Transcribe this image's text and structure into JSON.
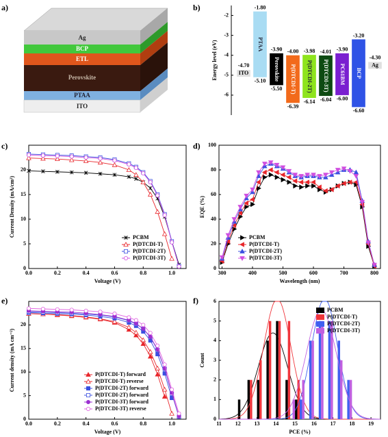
{
  "device": {
    "label": "a)",
    "layers": [
      "Ag",
      "BCP",
      "ETL",
      "Perovskite",
      "PTAA",
      "ITO"
    ]
  },
  "chart_data": [
    {
      "type": "energy",
      "label": "b)",
      "y_label": "Energy level (eV)",
      "ylim": [
        -7,
        -1.5
      ],
      "yticks": [
        -2,
        -3,
        -4,
        -5,
        -6
      ],
      "levels": [
        {
          "name": "ITO",
          "value": -4.7,
          "label": "-4.70"
        },
        {
          "name": "Ag",
          "value": -4.3,
          "label": "-4.30"
        }
      ],
      "bars": [
        {
          "name": "PTAA",
          "color": "#a9dcf3",
          "values": [
            -1.8,
            -5.1
          ],
          "value_labels": [
            "-1.80",
            "-5.10"
          ]
        },
        {
          "name": "Perovskite",
          "color": "#000000",
          "values": [
            -3.9,
            -5.5
          ],
          "value_labels": [
            "-3.90",
            "-5.50"
          ]
        },
        {
          "name": "P(DTCDI-T)",
          "color": "#f26a1b",
          "values": [
            -4.0,
            -6.39
          ],
          "value_labels": [
            "-4.00",
            "-6.39"
          ]
        },
        {
          "name": "P(DTCDI-2T)",
          "color": "#8ee41d",
          "values": [
            -3.98,
            -6.14
          ],
          "value_labels": [
            "-3.98",
            "-6.14"
          ]
        },
        {
          "name": "P(DTCDI-3T)",
          "color": "#0d4a12",
          "values": [
            -4.01,
            -6.04
          ],
          "value_labels": [
            "-4.01",
            "-6.04"
          ]
        },
        {
          "name": "PC61BM",
          "color": "#7a1fd0",
          "values": [
            -3.9,
            -6.0
          ],
          "value_labels": [
            "-3.90",
            "-6.00"
          ]
        },
        {
          "name": "BCP",
          "color": "#2f53e6",
          "values": [
            -3.2,
            -6.6
          ],
          "value_labels": [
            "-3.20",
            "-6.60"
          ]
        }
      ]
    },
    {
      "type": "line",
      "label": "c)",
      "x_label": "Voltage (V)",
      "y_label": "Current Density (mA/cm²)",
      "legend": "lower right",
      "xlim": [
        0,
        1.1
      ],
      "xticks": [
        {
          "value": 0,
          "label": "0.0"
        },
        0.2,
        0.4,
        0.6,
        0.8,
        {
          "value": 1,
          "label": "1.0"
        }
      ],
      "ylim": [
        0,
        25
      ],
      "yticks": [
        0,
        5,
        10,
        15,
        20
      ],
      "x": [
        0,
        0.1,
        0.2,
        0.3,
        0.4,
        0.5,
        0.6,
        0.7,
        0.75,
        0.8,
        0.85,
        0.9,
        0.95,
        1.0,
        1.05,
        1.08
      ],
      "series": [
        {
          "name": "PCBM",
          "color": "#000000",
          "marker": "x",
          "values": [
            19.8,
            19.7,
            19.6,
            19.5,
            19.4,
            19.2,
            19.0,
            18.6,
            18.2,
            17.5,
            16.3,
            14.2,
            10.5,
            5.5,
            0.8,
            null
          ]
        },
        {
          "name": "P(DTCDI-T)",
          "color": "#e8262b",
          "marker": "triangle-up-open",
          "values": [
            22.4,
            22.3,
            22.2,
            22.0,
            21.8,
            21.5,
            21.0,
            20.0,
            19.0,
            17.5,
            15.0,
            11.5,
            7.0,
            2.0,
            null,
            null
          ]
        },
        {
          "name": "P(DTCDI-2T)",
          "color": "#3a4fe0",
          "marker": "square-open",
          "values": [
            23.2,
            23.1,
            23.0,
            22.9,
            22.7,
            22.5,
            22.1,
            21.3,
            20.6,
            19.5,
            17.7,
            15.0,
            11.0,
            5.5,
            0.5,
            null
          ]
        },
        {
          "name": "P(DTCDI-3T)",
          "color": "#d04fe0",
          "marker": "circle-open",
          "values": [
            23.0,
            22.9,
            22.8,
            22.7,
            22.5,
            22.3,
            21.9,
            21.1,
            20.4,
            19.3,
            17.5,
            14.8,
            10.8,
            5.3,
            0.4,
            null
          ]
        }
      ]
    },
    {
      "type": "line",
      "label": "d)",
      "x_label": "Wavelength (nm)",
      "y_label": "EQE (%)",
      "legend": "lower left",
      "xlim": [
        290,
        820
      ],
      "xticks": [
        300,
        400,
        500,
        600,
        700,
        800
      ],
      "ylim": [
        0,
        100
      ],
      "yticks": [
        0,
        20,
        40,
        60,
        80,
        100
      ],
      "x": [
        300,
        320,
        340,
        360,
        380,
        400,
        420,
        440,
        460,
        480,
        500,
        520,
        540,
        560,
        580,
        600,
        620,
        640,
        660,
        680,
        700,
        720,
        740,
        760,
        780,
        800
      ],
      "series": [
        {
          "name": "PCBM",
          "color": "#000000",
          "marker": "triangle-right",
          "values": [
            5,
            20,
            32,
            42,
            50,
            52,
            65,
            74,
            76,
            74,
            72,
            70,
            67,
            66,
            67,
            67,
            64,
            62,
            64,
            67,
            69,
            70,
            68,
            50,
            18,
            2
          ]
        },
        {
          "name": "P(DTCDI-T)",
          "color": "#e8262b",
          "marker": "triangle-left",
          "values": [
            6,
            22,
            35,
            45,
            53,
            56,
            70,
            78,
            80,
            78,
            76,
            74,
            71,
            70,
            70,
            70,
            66,
            63,
            64,
            67,
            69,
            70,
            70,
            52,
            20,
            2
          ]
        },
        {
          "name": "P(DTCDI-2T)",
          "color": "#3a4fe0",
          "marker": "triangle-up",
          "values": [
            8,
            25,
            38,
            48,
            57,
            62,
            75,
            83,
            85,
            83,
            81,
            78,
            75,
            74,
            75,
            75,
            74,
            74,
            76,
            78,
            80,
            80,
            78,
            55,
            22,
            3
          ]
        },
        {
          "name": "P(DTCDI-3T)",
          "color": "#d04fe0",
          "marker": "triangle-down",
          "values": [
            9,
            27,
            40,
            50,
            59,
            64,
            78,
            85,
            86,
            84,
            82,
            79,
            76,
            75,
            76,
            76,
            75,
            76,
            78,
            80,
            81,
            79,
            75,
            54,
            21,
            3
          ]
        }
      ]
    },
    {
      "type": "line",
      "label": "e)",
      "x_label": "Voltage (V)",
      "y_label": "Current density (mA cm⁻²)",
      "legend": "lower center",
      "xlim": [
        0,
        1.1
      ],
      "xticks": [
        {
          "value": 0,
          "label": "0.0"
        },
        0.2,
        0.4,
        0.6,
        0.8,
        {
          "value": 1,
          "label": "1.0"
        }
      ],
      "ylim": [
        0,
        25
      ],
      "yticks": [
        0,
        5,
        10,
        15,
        20
      ],
      "x": [
        0,
        0.1,
        0.2,
        0.3,
        0.4,
        0.5,
        0.6,
        0.7,
        0.75,
        0.8,
        0.85,
        0.9,
        0.95,
        1.0,
        1.05,
        1.08
      ],
      "series": [
        {
          "name": "P(DTCDI-T) forward",
          "color": "#e8262b",
          "marker": "triangle-up",
          "values": [
            22.4,
            22.3,
            22.1,
            21.9,
            21.6,
            21.2,
            20.5,
            19.0,
            17.8,
            16.0,
            13.3,
            9.5,
            4.8,
            null,
            null,
            null
          ]
        },
        {
          "name": "P(DTCDI-T) reverse",
          "color": "#e8262b",
          "marker": "triangle-up-open",
          "values": [
            22.4,
            22.3,
            22.2,
            22.0,
            21.7,
            21.3,
            20.7,
            19.5,
            18.4,
            16.8,
            14.3,
            10.8,
            6.3,
            1.2,
            null,
            null
          ]
        },
        {
          "name": "P(DTCDI-2T) forward",
          "color": "#3a4fe0",
          "marker": "square",
          "values": [
            22.6,
            22.5,
            22.4,
            22.3,
            22.1,
            21.8,
            21.4,
            20.5,
            19.8,
            18.6,
            16.7,
            13.8,
            9.7,
            4.5,
            null,
            null
          ]
        },
        {
          "name": "P(DTCDI-2T) forward",
          "color": "#3a4fe0",
          "marker": "square-open",
          "values": [
            22.8,
            22.7,
            22.6,
            22.5,
            22.3,
            22.1,
            21.7,
            20.9,
            20.2,
            19.2,
            17.4,
            14.7,
            10.7,
            5.4,
            0.5,
            null
          ]
        },
        {
          "name": "P(DTCDI-3T) forward",
          "color": "#9b2fd0",
          "marker": "circle",
          "values": [
            23.0,
            22.9,
            22.8,
            22.7,
            22.5,
            22.2,
            21.8,
            21.0,
            20.3,
            19.2,
            17.5,
            14.8,
            10.8,
            5.6,
            0.6,
            null
          ]
        },
        {
          "name": "P(DTCDI-3T) reverse",
          "color": "#e060e0",
          "marker": "circle-open",
          "values": [
            23.5,
            23.4,
            23.3,
            23.2,
            23.0,
            22.8,
            22.4,
            21.6,
            21.0,
            20.0,
            18.3,
            15.6,
            11.6,
            6.3,
            1.2,
            null
          ]
        }
      ]
    },
    {
      "type": "histogram",
      "label": "f)",
      "x_label": "PCE (%)",
      "y_label": "Count",
      "legend": "upper right",
      "xlim": [
        11,
        19.5
      ],
      "xticks": [
        11,
        12,
        13,
        14,
        15,
        16,
        17,
        18,
        19
      ],
      "ylim": [
        0,
        6
      ],
      "yticks": [
        0,
        1,
        2,
        3,
        4,
        5,
        6
      ],
      "bins": [
        12.0,
        12.5,
        13.0,
        13.5,
        14.0,
        14.5,
        15.0,
        15.5,
        16.0,
        16.5,
        17.0,
        17.5,
        18.0
      ],
      "series": [
        {
          "name": "PCBM",
          "color": "#000000",
          "values": [
            1,
            2,
            2,
            4,
            5,
            2,
            1,
            0,
            0,
            0,
            0,
            0
          ]
        },
        {
          "name": "P(DTCDI-T)",
          "color": "#f0363c",
          "values": [
            0,
            2,
            3,
            5,
            5,
            5,
            2,
            0,
            0,
            0,
            0,
            0
          ]
        },
        {
          "name": "P(DTCDI-2T)",
          "color": "#4060f0",
          "values": [
            0,
            0,
            0,
            0,
            0,
            0,
            1,
            4,
            5,
            5,
            4,
            2
          ]
        },
        {
          "name": "P(DTCDI-3T)",
          "color": "#c060e0",
          "values": [
            0,
            0,
            0,
            0,
            0,
            1,
            2,
            4,
            5,
            5,
            3,
            2
          ]
        }
      ]
    }
  ]
}
